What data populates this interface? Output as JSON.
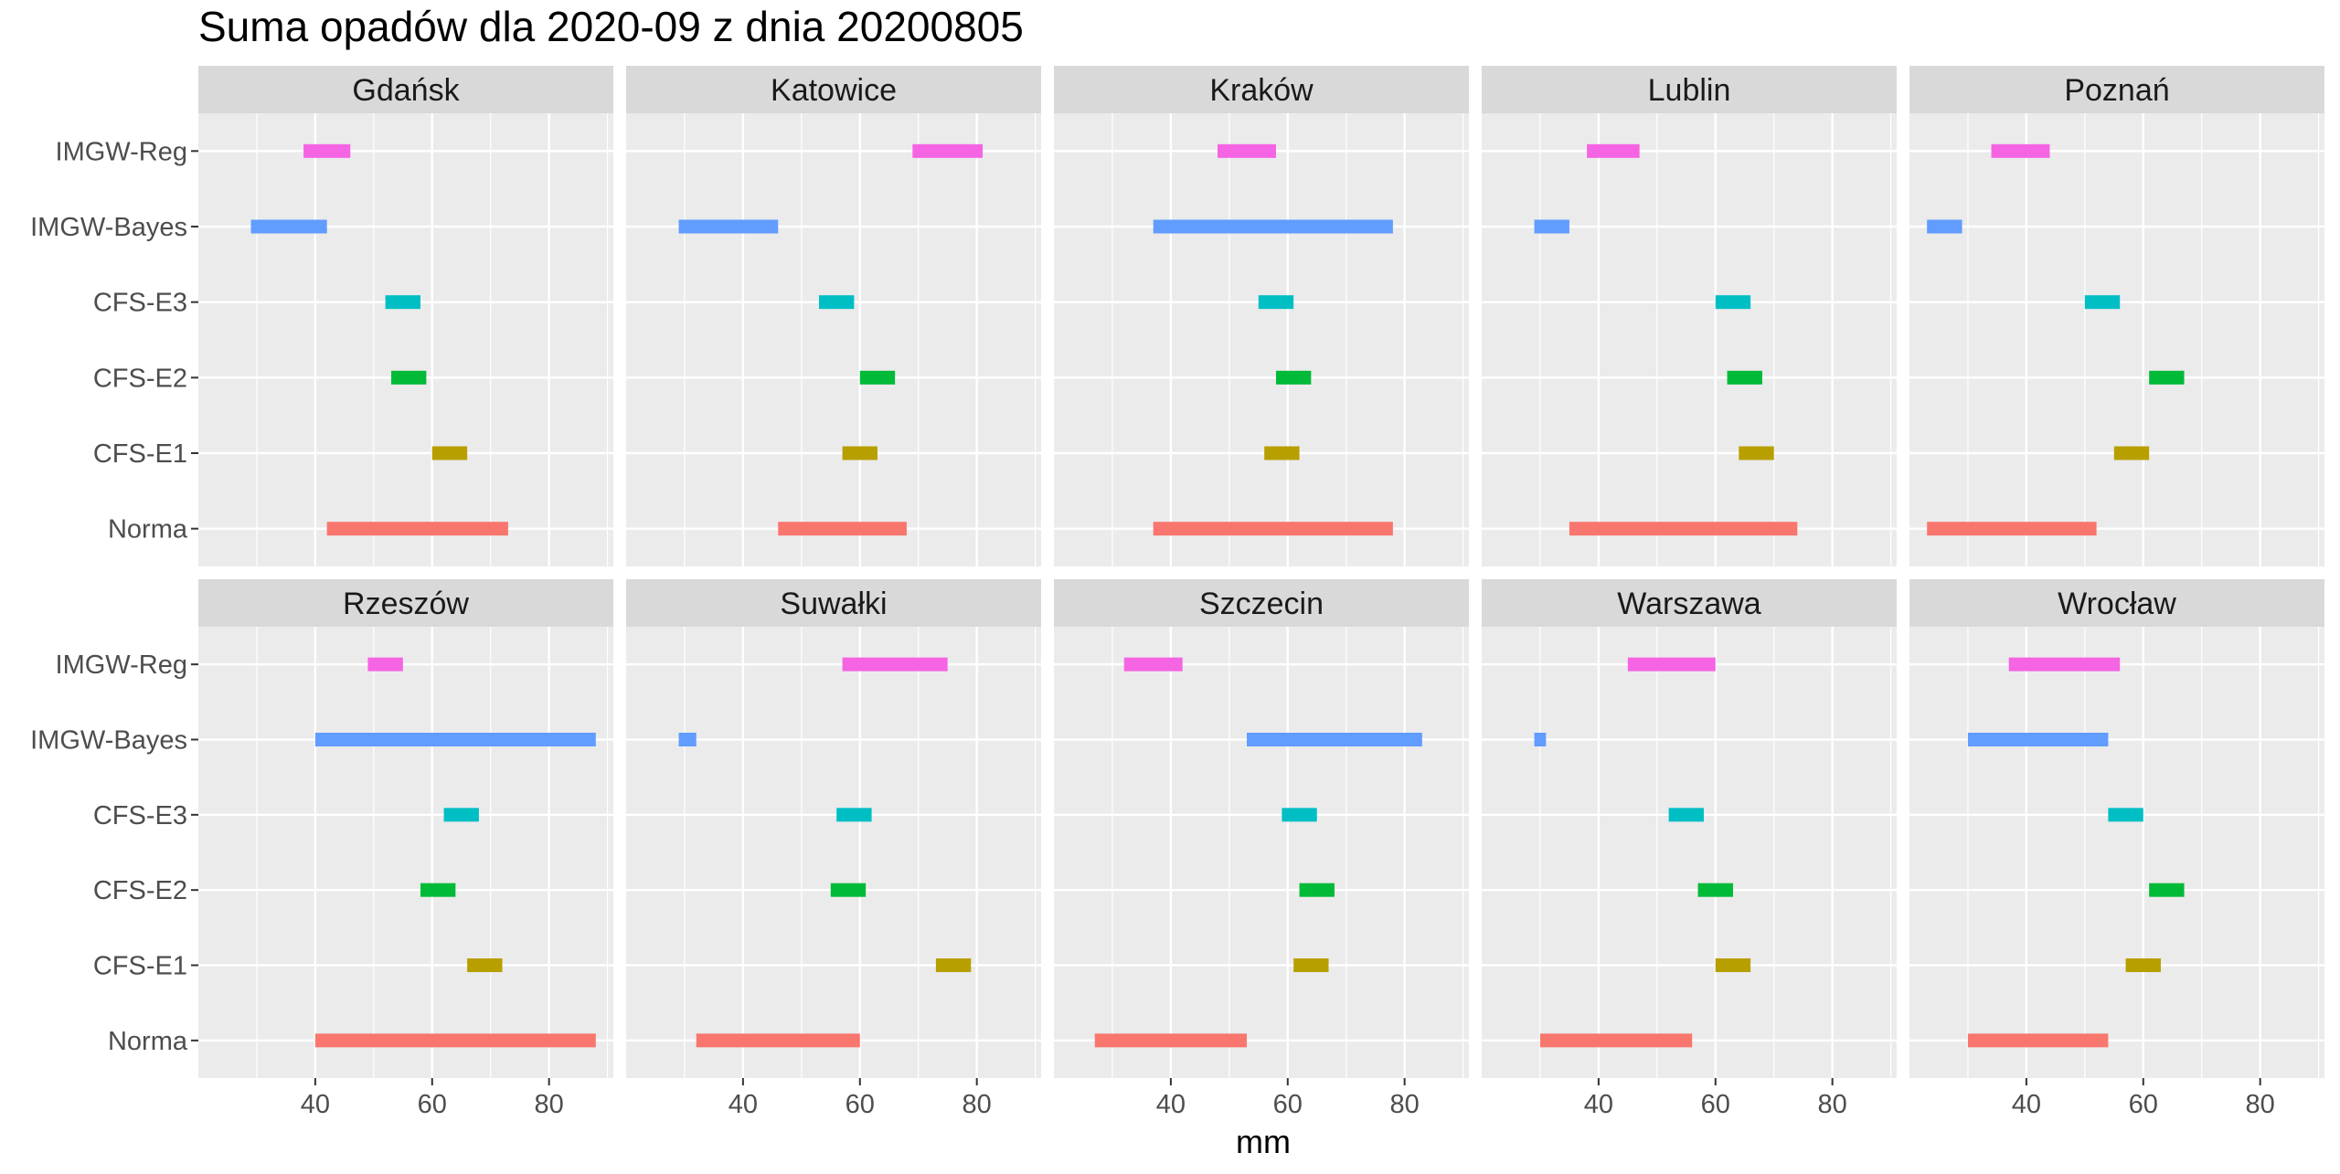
{
  "chart_data": {
    "type": "bar",
    "title": "Suma opadów dla 2020-09 z dnia 20200805",
    "xlabel": "mm",
    "ylabel": "",
    "xlim": [
      20,
      91
    ],
    "x_ticks": [
      40,
      60,
      80
    ],
    "grid": true,
    "legend": "none",
    "categories": [
      "IMGW-Reg",
      "IMGW-Bayes",
      "CFS-E3",
      "CFS-E2",
      "CFS-E1",
      "Norma"
    ],
    "colors": {
      "IMGW-Reg": "#F564E3",
      "IMGW-Bayes": "#619CFF",
      "CFS-E3": "#00BFC4",
      "CFS-E2": "#00BA38",
      "CFS-E1": "#B79F00",
      "Norma": "#F8766D"
    },
    "panels": [
      {
        "name": "Gdańsk",
        "ranges": {
          "IMGW-Reg": [
            38,
            46
          ],
          "IMGW-Bayes": [
            29,
            42
          ],
          "CFS-E3": [
            52,
            58
          ],
          "CFS-E2": [
            53,
            59
          ],
          "CFS-E1": [
            60,
            66
          ],
          "Norma": [
            42,
            73
          ]
        }
      },
      {
        "name": "Katowice",
        "ranges": {
          "IMGW-Reg": [
            69,
            81
          ],
          "IMGW-Bayes": [
            29,
            46
          ],
          "CFS-E3": [
            53,
            59
          ],
          "CFS-E2": [
            60,
            66
          ],
          "CFS-E1": [
            57,
            63
          ],
          "Norma": [
            46,
            68
          ]
        }
      },
      {
        "name": "Kraków",
        "ranges": {
          "IMGW-Reg": [
            48,
            58
          ],
          "IMGW-Bayes": [
            37,
            78
          ],
          "CFS-E3": [
            55,
            61
          ],
          "CFS-E2": [
            58,
            64
          ],
          "CFS-E1": [
            56,
            62
          ],
          "Norma": [
            37,
            78
          ]
        }
      },
      {
        "name": "Lublin",
        "ranges": {
          "IMGW-Reg": [
            38,
            47
          ],
          "IMGW-Bayes": [
            29,
            35
          ],
          "CFS-E3": [
            60,
            66
          ],
          "CFS-E2": [
            62,
            68
          ],
          "CFS-E1": [
            64,
            70
          ],
          "Norma": [
            35,
            74
          ]
        }
      },
      {
        "name": "Poznań",
        "ranges": {
          "IMGW-Reg": [
            34,
            44
          ],
          "IMGW-Bayes": [
            23,
            29
          ],
          "CFS-E3": [
            50,
            56
          ],
          "CFS-E2": [
            61,
            67
          ],
          "CFS-E1": [
            55,
            61
          ],
          "Norma": [
            23,
            52
          ]
        }
      },
      {
        "name": "Rzeszów",
        "ranges": {
          "IMGW-Reg": [
            49,
            55
          ],
          "IMGW-Bayes": [
            40,
            88
          ],
          "CFS-E3": [
            62,
            68
          ],
          "CFS-E2": [
            58,
            64
          ],
          "CFS-E1": [
            66,
            72
          ],
          "Norma": [
            40,
            88
          ]
        }
      },
      {
        "name": "Suwałki",
        "ranges": {
          "IMGW-Reg": [
            57,
            75
          ],
          "IMGW-Bayes": [
            29,
            32
          ],
          "CFS-E3": [
            56,
            62
          ],
          "CFS-E2": [
            55,
            61
          ],
          "CFS-E1": [
            73,
            79
          ],
          "Norma": [
            32,
            60
          ]
        }
      },
      {
        "name": "Szczecin",
        "ranges": {
          "IMGW-Reg": [
            32,
            42
          ],
          "IMGW-Bayes": [
            53,
            83
          ],
          "CFS-E3": [
            59,
            65
          ],
          "CFS-E2": [
            62,
            68
          ],
          "CFS-E1": [
            61,
            67
          ],
          "Norma": [
            27,
            53
          ]
        }
      },
      {
        "name": "Warszawa",
        "ranges": {
          "IMGW-Reg": [
            45,
            60
          ],
          "IMGW-Bayes": [
            29,
            31
          ],
          "CFS-E3": [
            52,
            58
          ],
          "CFS-E2": [
            57,
            63
          ],
          "CFS-E1": [
            60,
            66
          ],
          "Norma": [
            30,
            56
          ]
        }
      },
      {
        "name": "Wrocław",
        "ranges": {
          "IMGW-Reg": [
            37,
            56
          ],
          "IMGW-Bayes": [
            30,
            54
          ],
          "CFS-E3": [
            54,
            60
          ],
          "CFS-E2": [
            61,
            67
          ],
          "CFS-E1": [
            57,
            63
          ],
          "Norma": [
            30,
            54
          ]
        }
      }
    ]
  }
}
